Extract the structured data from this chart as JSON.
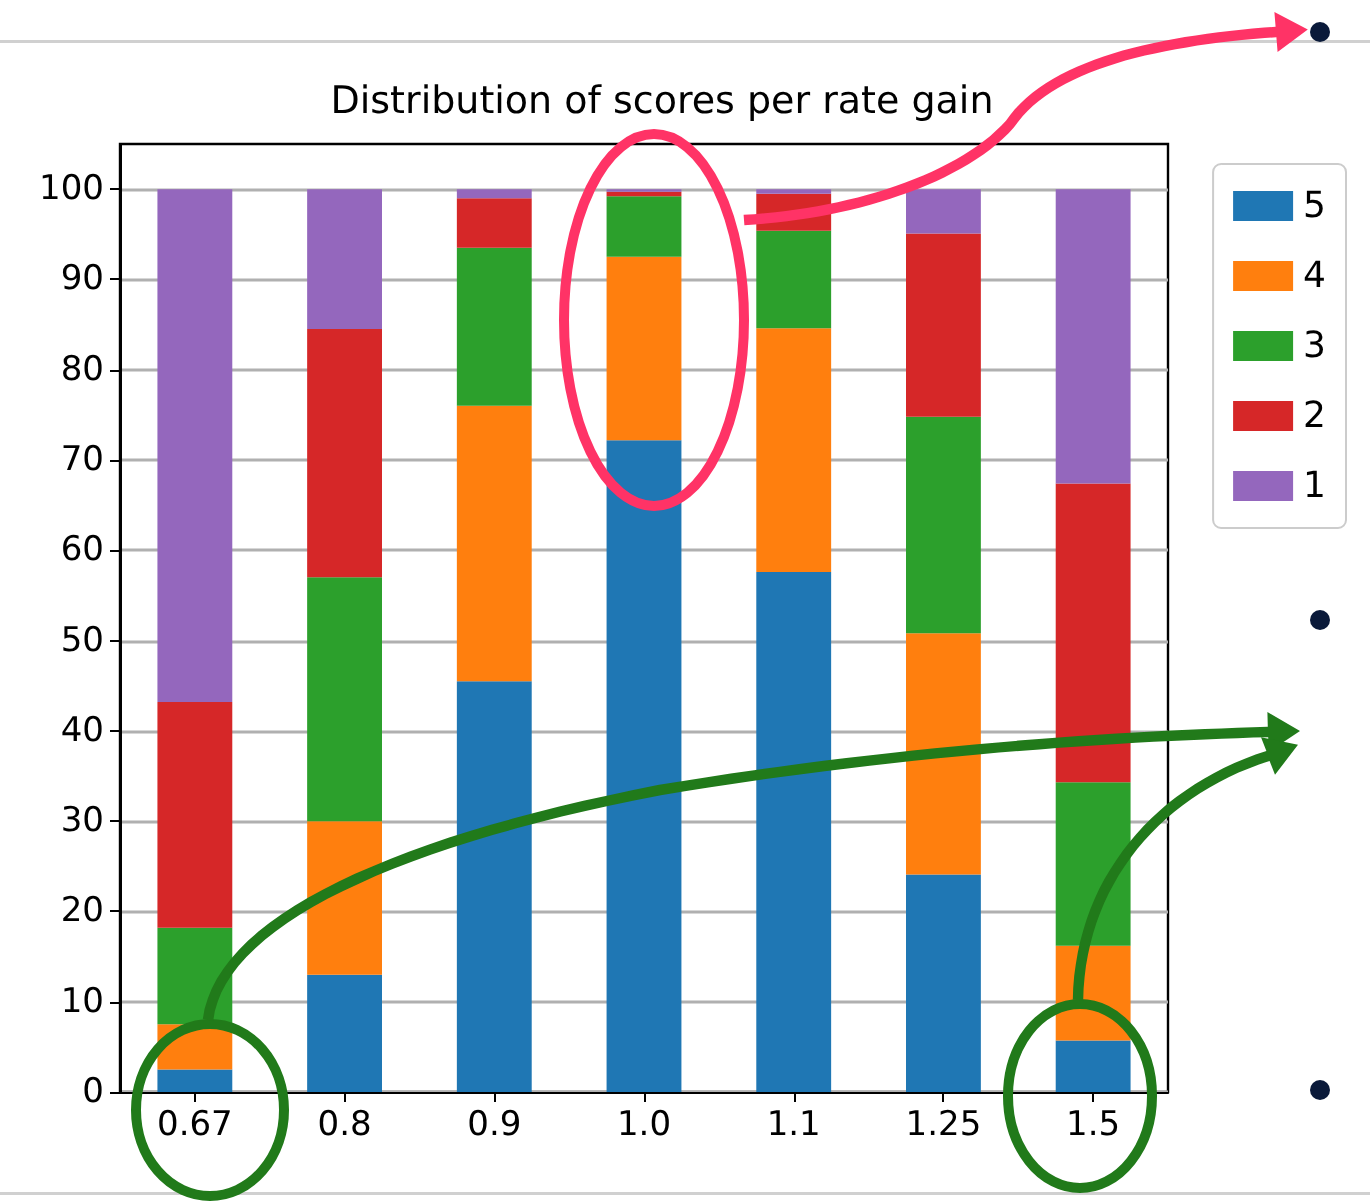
{
  "chart_data": {
    "type": "bar",
    "title": "Distribution of scores per rate gain",
    "categories": [
      "0.67",
      "0.8",
      "0.9",
      "1.0",
      "1.1",
      "1.25",
      "1.5"
    ],
    "series": [
      {
        "name": "5",
        "color": "#1f77b4",
        "values": [
          2.5,
          13,
          45.5,
          72.2,
          57.6,
          24.1,
          5.7
        ]
      },
      {
        "name": "4",
        "color": "#ff7f0e",
        "values": [
          5,
          17,
          30.5,
          20.3,
          27,
          26.7,
          10.5
        ]
      },
      {
        "name": "3",
        "color": "#2ca02c",
        "values": [
          10.7,
          27,
          17.5,
          6.7,
          10.8,
          24,
          18.1
        ]
      },
      {
        "name": "2",
        "color": "#d62728",
        "values": [
          25,
          27.5,
          5.5,
          0.5,
          4.1,
          20.3,
          33.1
        ]
      },
      {
        "name": "1",
        "color": "#9467bd",
        "values": [
          56.8,
          15.5,
          1,
          0.3,
          0.5,
          4.9,
          32.6
        ]
      }
    ],
    "stacked": true,
    "ylim": [
      0,
      105
    ],
    "yticks": [
      0,
      10,
      20,
      30,
      40,
      50,
      60,
      70,
      80,
      90,
      100
    ],
    "grid": "y",
    "legend": "top right"
  }
}
